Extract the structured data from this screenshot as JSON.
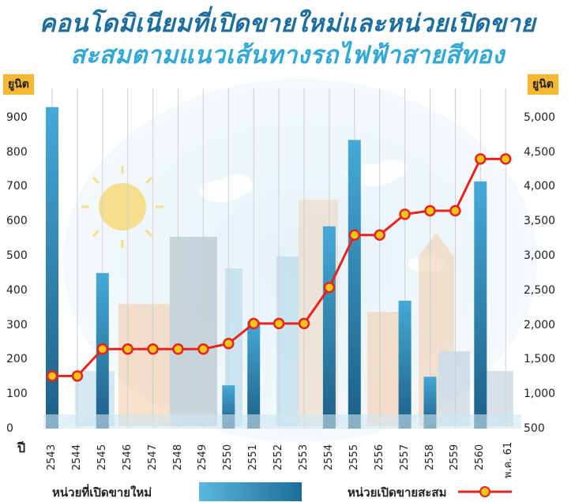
{
  "title_line1": "คอนโดมิเนียมที่เปิดขายใหม่และหน่วยเปิดขาย",
  "title_line2": "สะสมตามแนวเส้นทางรถไฟฟ้าสายสีทอง",
  "left_axis_unit": "ยูนิต",
  "right_axis_unit": "ยูนิต",
  "x_axis_label": "ปี",
  "legend": {
    "bars": "หน่วยที่เปิดขายใหม่",
    "line": "หน่วยเปิดขายสะสม"
  },
  "colors": {
    "bar_top": "#45a9d6",
    "bar_bottom": "#1d5f86",
    "line": "#e8231f",
    "marker_fill": "#f5c518",
    "unit_badge": "#f7b733",
    "grid": "#cfcfcf"
  },
  "chart_data": {
    "type": "bar",
    "categories": [
      "2543",
      "2544",
      "2545",
      "2546",
      "2547",
      "2548",
      "2549",
      "2550",
      "2551",
      "2552",
      "2553",
      "2554",
      "2555",
      "2556",
      "2557",
      "2558",
      "2559",
      "2560",
      "พ.ค. 61"
    ],
    "series": [
      {
        "name": "หน่วยที่เปิดขายใหม่",
        "type": "bar",
        "axis": "left",
        "values": [
          930,
          0,
          450,
          0,
          0,
          0,
          0,
          125,
          310,
          0,
          0,
          585,
          835,
          0,
          370,
          150,
          0,
          715,
          0
        ]
      },
      {
        "name": "หน่วยเปิดขายสะสม",
        "type": "line",
        "axis": "right",
        "values": [
          1260,
          1260,
          1650,
          1650,
          1650,
          1650,
          1650,
          1730,
          2020,
          2020,
          2020,
          2540,
          3300,
          3300,
          3600,
          3650,
          3650,
          4400,
          4400
        ]
      }
    ],
    "left_axis": {
      "ticks": [
        0,
        100,
        200,
        300,
        400,
        500,
        600,
        700,
        800,
        900
      ],
      "tick_labels": [
        "0",
        "100",
        "200",
        "300",
        "400",
        "500",
        "600",
        "700",
        "800",
        "900"
      ],
      "ylim": [
        0,
        960
      ]
    },
    "right_axis": {
      "ticks": [
        500,
        1000,
        1500,
        2000,
        2500,
        3000,
        3500,
        4000,
        4500,
        5000
      ],
      "tick_labels": [
        "500",
        "1,000",
        "1,500",
        "2,000",
        "2,500",
        "3,000",
        "3,500",
        "4,000",
        "4,500",
        "5,000"
      ],
      "ylim": [
        500,
        5300
      ]
    },
    "grid": "vertical",
    "legend_position": "bottom"
  }
}
